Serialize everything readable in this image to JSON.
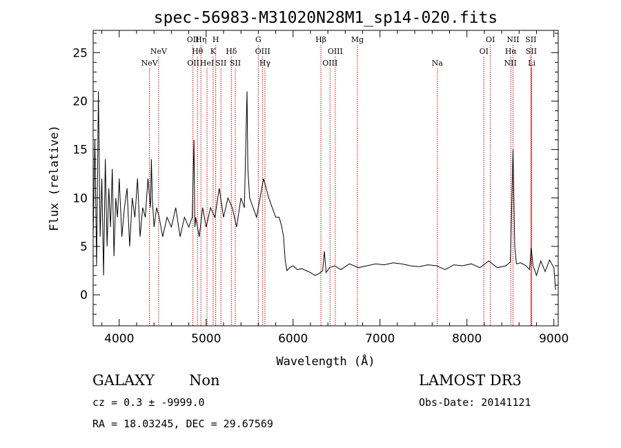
{
  "chart_data": {
    "type": "line",
    "title": "spec-56983-M31020N28M1_sp14-020.fits",
    "xlabel": "Wavelength (Å)",
    "ylabel": "Flux (relative)",
    "xlim": [
      3700,
      9050
    ],
    "ylim": [
      -3.2,
      27.3
    ],
    "xticks": [
      4000,
      5000,
      6000,
      7000,
      8000,
      9000
    ],
    "yticks": [
      0,
      5,
      10,
      15,
      20,
      25
    ],
    "grid": false,
    "legend": "none",
    "series": [
      {
        "x": [
          3700,
          3720,
          3740,
          3760,
          3780,
          3800,
          3820,
          3840,
          3860,
          3880,
          3900,
          3920,
          3940,
          3960,
          3980,
          4000,
          4030,
          4060,
          4090,
          4120,
          4150,
          4180,
          4210,
          4240,
          4270,
          4300,
          4330,
          4360,
          4370,
          4380,
          4400,
          4430,
          4460,
          4500,
          4550,
          4600,
          4650,
          4700,
          4750,
          4800,
          4840,
          4860,
          4870,
          4880,
          4920,
          4960,
          5000,
          5050,
          5100,
          5150,
          5200,
          5250,
          5300,
          5350,
          5400,
          5440,
          5460,
          5470,
          5480,
          5500,
          5540,
          5580,
          5620,
          5660,
          5690,
          5720,
          5760,
          5800,
          5840,
          5870,
          5890,
          5910,
          5930,
          5960,
          6000,
          6050,
          6100,
          6150,
          6200,
          6250,
          6300,
          6340,
          6360,
          6380,
          6420,
          6480,
          6550,
          6650,
          6750,
          6850,
          6950,
          7050,
          7150,
          7250,
          7350,
          7450,
          7550,
          7650,
          7750,
          7850,
          7950,
          8050,
          8150,
          8250,
          8350,
          8450,
          8500,
          8530,
          8550,
          8570,
          8620,
          8680,
          8720,
          8740,
          8760,
          8800,
          8850,
          8900,
          8950,
          9000,
          9020
        ],
        "values": [
          6,
          16,
          3,
          21,
          6,
          12,
          2,
          14,
          5,
          11,
          7,
          13,
          4,
          10,
          8,
          12,
          6,
          9,
          11,
          5,
          10,
          8,
          12,
          6,
          9,
          8,
          12,
          9,
          14,
          10,
          7,
          9,
          8,
          6,
          8,
          7,
          9,
          6,
          8,
          7,
          8,
          16,
          7,
          8,
          6,
          9,
          7,
          9,
          8,
          11,
          8,
          10,
          9,
          7,
          10,
          9,
          17,
          21,
          13,
          10,
          9,
          8,
          10,
          12,
          11,
          10,
          9,
          8,
          8,
          7,
          6,
          3.5,
          2.5,
          2.8,
          3,
          2.6,
          2.7,
          2.5,
          2.3,
          2,
          2.2,
          2.5,
          4.5,
          2.3,
          2.8,
          3,
          2.6,
          3.2,
          2.8,
          3,
          3.2,
          3.1,
          3.3,
          3.2,
          3,
          2.9,
          3.1,
          3,
          2.6,
          3.1,
          3,
          3.2,
          2.8,
          3.5,
          2.8,
          3,
          3.4,
          15,
          5,
          3.2,
          3.3,
          3,
          2.6,
          4.8,
          3,
          2,
          3.5,
          2.4,
          3.6,
          2.8,
          0.5
        ]
      }
    ],
    "emission_lines": [
      {
        "label": "NeV",
        "lambda": 4348,
        "row": 3
      },
      {
        "label": "NeV",
        "lambda": 4453,
        "row": 2
      },
      {
        "label": "OII",
        "lambda": 4848,
        "row": 1
      },
      {
        "label": "OII",
        "lambda": 4852,
        "row": 3
      },
      {
        "label": "Hη",
        "lambda": 4940,
        "row": 1
      },
      {
        "label": "Hθ",
        "lambda": 4900,
        "row": 2
      },
      {
        "label": "HeI",
        "lambda": 5010,
        "row": 3
      },
      {
        "label": "H",
        "lambda": 5110,
        "row": 1
      },
      {
        "label": "K",
        "lambda": 5080,
        "row": 2
      },
      {
        "label": "SII",
        "lambda": 5170,
        "row": 3
      },
      {
        "label": "Hδ",
        "lambda": 5290,
        "row": 2
      },
      {
        "label": "SII",
        "lambda": 5335,
        "row": 3
      },
      {
        "label": "G",
        "lambda": 5600,
        "row": 1
      },
      {
        "label": "OIII",
        "lambda": 5650,
        "row": 2
      },
      {
        "label": "Hγ",
        "lambda": 5676,
        "row": 3
      },
      {
        "label": "Hβ",
        "lambda": 6320,
        "row": 1
      },
      {
        "label": "OIII",
        "lambda": 6485,
        "row": 2
      },
      {
        "label": "OIII",
        "lambda": 6425,
        "row": 3
      },
      {
        "label": "Mg",
        "lambda": 6740,
        "row": 1
      },
      {
        "label": "Na",
        "lambda": 7660,
        "row": 3
      },
      {
        "label": "OI",
        "lambda": 8270,
        "row": 1
      },
      {
        "label": "OI",
        "lambda": 8195,
        "row": 2
      },
      {
        "label": "NII",
        "lambda": 8530,
        "row": 1
      },
      {
        "label": "Hα",
        "lambda": 8505,
        "row": 2
      },
      {
        "label": "NII",
        "lambda": 8500,
        "row": 3
      },
      {
        "label": "SII",
        "lambda": 8735,
        "row": 1
      },
      {
        "label": "SII",
        "lambda": 8740,
        "row": 2
      },
      {
        "label": "Li",
        "lambda": 8745,
        "row": 3
      }
    ]
  },
  "info": {
    "class_label": "GALAXY",
    "subclass_label": "Non",
    "survey_label": "LAMOST DR3",
    "cz_text": "cz = 0.3 ± -9999.0",
    "obs_date_text": "Obs-Date: 20141121",
    "radec_text": "RA =  18.03245, DEC =  29.67569"
  },
  "colors": {
    "spectrum": "#000000",
    "line_marker": "#cc0000",
    "axes": "#000000"
  }
}
